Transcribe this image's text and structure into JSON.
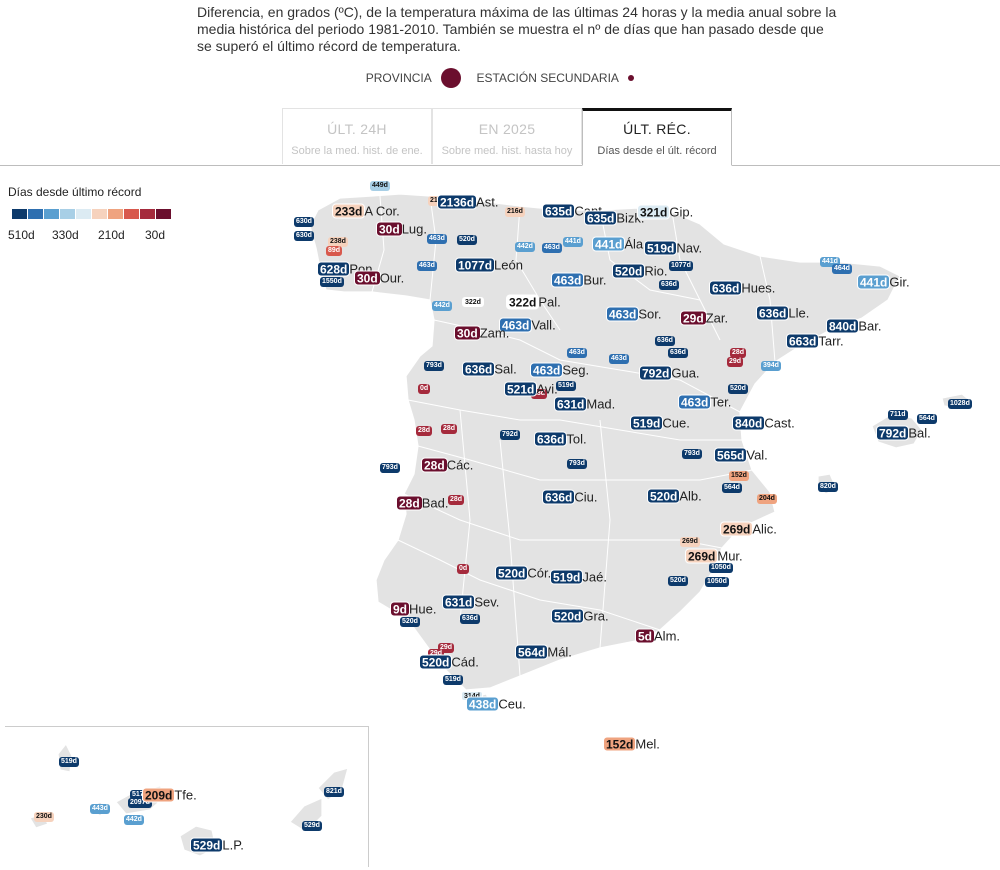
{
  "subtitle": "Diferencia, en grados (ºC), de la temperatura máxima de las últimas 24 horas y la media anual sobre la media histórica del periodo 1981-2010. También se muestra el nº de días que han pasado desde que se superó el último récord de temperatura.",
  "legend": {
    "provincia": "PROVINCIA",
    "estacion": "ESTACIÓN SECUNDARIA"
  },
  "tabs": [
    {
      "title": "ÚLT. 24H",
      "sub": "Sobre la med. hist. de ene.",
      "active": false
    },
    {
      "title": "EN 2025",
      "sub": "Sobre med. hist. hasta hoy",
      "active": false
    },
    {
      "title": "ÚLT. RÉC.",
      "sub": "Días desde el últ. récord",
      "active": true
    }
  ],
  "scale": {
    "title": "Días desde último récord",
    "colors": [
      "#0d3a6b",
      "#2e6fb0",
      "#5a9fd0",
      "#a8cfe6",
      "#dcebf3",
      "#f6d2bd",
      "#efa37f",
      "#d8594d",
      "#a52a3c",
      "#6b0f2e"
    ],
    "labels": [
      "510d",
      "330d",
      "210d",
      "30d"
    ]
  },
  "colors": {
    "d0": "#0d3a6b",
    "d1": "#2e6fb0",
    "d2": "#5a9fd0",
    "d3": "#a8cfe6",
    "d4": "#dcebf3",
    "w4": "#f6d2bd",
    "w3": "#efa37f",
    "w2": "#d8594d",
    "w1": "#a52a3c",
    "w0": "#6b0f2e",
    "land": "#e3e3e3"
  },
  "provinces": [
    {
      "days": "233d",
      "name": "A Cor.",
      "c": "w4"
    },
    {
      "days": "2136d",
      "name": "Ast.",
      "c": "d0"
    },
    {
      "days": "635d",
      "name": "Cant.",
      "c": "d0"
    },
    {
      "days": "635d",
      "name": "Bizk.",
      "c": "d0"
    },
    {
      "days": "321d",
      "name": "Gip.",
      "c": "d4"
    },
    {
      "days": "30d",
      "name": "Lug.",
      "c": "w0"
    },
    {
      "days": "441d",
      "name": "Ála.",
      "c": "d2"
    },
    {
      "days": "519d",
      "name": "Nav.",
      "c": "d0"
    },
    {
      "days": "628d",
      "name": "Pon.",
      "c": "d0"
    },
    {
      "days": "1077d",
      "name": "León",
      "c": "d0"
    },
    {
      "days": "520d",
      "name": "Rio.",
      "c": "d0"
    },
    {
      "days": "30d",
      "name": "Our.",
      "c": "w0"
    },
    {
      "days": "463d",
      "name": "Bur.",
      "c": "d1"
    },
    {
      "days": "636d",
      "name": "Hues.",
      "c": "d0"
    },
    {
      "days": "441d",
      "name": "Gir.",
      "c": "d2"
    },
    {
      "days": "322d",
      "name": "Pal.",
      "c": "none"
    },
    {
      "days": "463d",
      "name": "Sor.",
      "c": "d1"
    },
    {
      "days": "29d",
      "name": "Zar.",
      "c": "w0"
    },
    {
      "days": "636d",
      "name": "Lle.",
      "c": "d0"
    },
    {
      "days": "840d",
      "name": "Bar.",
      "c": "d0"
    },
    {
      "days": "463d",
      "name": "Vall.",
      "c": "d1"
    },
    {
      "days": "30d",
      "name": "Zam.",
      "c": "w0"
    },
    {
      "days": "663d",
      "name": "Tarr.",
      "c": "d0"
    },
    {
      "days": "636d",
      "name": "Sal.",
      "c": "d0"
    },
    {
      "days": "463d",
      "name": "Seg.",
      "c": "d1"
    },
    {
      "days": "792d",
      "name": "Gua.",
      "c": "d0"
    },
    {
      "days": "521d",
      "name": "Avi.",
      "c": "d0"
    },
    {
      "days": "631d",
      "name": "Mad.",
      "c": "d0"
    },
    {
      "days": "463d",
      "name": "Ter.",
      "c": "d1"
    },
    {
      "days": "519d",
      "name": "Cue.",
      "c": "d0"
    },
    {
      "days": "840d",
      "name": "Cast.",
      "c": "d0"
    },
    {
      "days": "792d",
      "name": "Bal.",
      "c": "d0"
    },
    {
      "days": "636d",
      "name": "Tol.",
      "c": "d0"
    },
    {
      "days": "28d",
      "name": "Các.",
      "c": "w0"
    },
    {
      "days": "565d",
      "name": "Val.",
      "c": "d0"
    },
    {
      "days": "28d",
      "name": "Bad.",
      "c": "w0"
    },
    {
      "days": "636d",
      "name": "Ciu.",
      "c": "d0"
    },
    {
      "days": "520d",
      "name": "Alb.",
      "c": "d0"
    },
    {
      "days": "269d",
      "name": "Alic.",
      "c": "w4"
    },
    {
      "days": "269d",
      "name": "Mur.",
      "c": "w4"
    },
    {
      "days": "520d",
      "name": "Cór.",
      "c": "d0"
    },
    {
      "days": "519d",
      "name": "Jaé.",
      "c": "d0"
    },
    {
      "days": "9d",
      "name": "Hue.",
      "c": "w0"
    },
    {
      "days": "631d",
      "name": "Sev.",
      "c": "d0"
    },
    {
      "days": "520d",
      "name": "Gra.",
      "c": "d0"
    },
    {
      "days": "5d",
      "name": "Alm.",
      "c": "w0"
    },
    {
      "days": "564d",
      "name": "Mál.",
      "c": "d0"
    },
    {
      "days": "520d",
      "name": "Cád.",
      "c": "d0"
    },
    {
      "days": "438d",
      "name": "Ceu.",
      "c": "d2"
    },
    {
      "days": "152d",
      "name": "Mel.",
      "c": "w3"
    },
    {
      "days": "209d",
      "name": "Tfe.",
      "c": "w3"
    },
    {
      "days": "529d",
      "name": "L.P.",
      "c": "d0"
    }
  ],
  "stations": [
    {
      "v": "449d",
      "c": "d3"
    },
    {
      "v": "216",
      "c": "w4"
    },
    {
      "v": "216d",
      "c": "w4"
    },
    {
      "v": "630d",
      "c": "d0"
    },
    {
      "v": "630d",
      "c": "d0"
    },
    {
      "v": "238d",
      "c": "w4"
    },
    {
      "v": "89d",
      "c": "w2"
    },
    {
      "v": "463d",
      "c": "d1"
    },
    {
      "v": "520d",
      "c": "d0"
    },
    {
      "v": "442d",
      "c": "d2"
    },
    {
      "v": "441d",
      "c": "d2"
    },
    {
      "v": "463d",
      "c": "d1"
    },
    {
      "v": "1077d",
      "c": "d0"
    },
    {
      "v": "1550d",
      "c": "d0"
    },
    {
      "v": "463d",
      "c": "d1"
    },
    {
      "v": "636d",
      "c": "d0"
    },
    {
      "v": "442d",
      "c": "d2"
    },
    {
      "v": "322d",
      "c": "none"
    },
    {
      "v": "441d",
      "c": "d2"
    },
    {
      "v": "464d",
      "c": "d1"
    },
    {
      "v": "636d",
      "c": "d0"
    },
    {
      "v": "636d",
      "c": "d0"
    },
    {
      "v": "28d",
      "c": "w1"
    },
    {
      "v": "29d",
      "c": "w1"
    },
    {
      "v": "793d",
      "c": "d0"
    },
    {
      "v": "463d",
      "c": "d1"
    },
    {
      "v": "463d",
      "c": "d1"
    },
    {
      "v": "394d",
      "c": "d2"
    },
    {
      "v": "0d",
      "c": "w1"
    },
    {
      "v": "520d",
      "c": "d0"
    },
    {
      "v": "519d",
      "c": "d0"
    },
    {
      "v": "28d",
      "c": "w1"
    },
    {
      "v": "28d",
      "c": "w1"
    },
    {
      "v": "28d",
      "c": "w1"
    },
    {
      "v": "792d",
      "c": "d0"
    },
    {
      "v": "711d",
      "c": "d0"
    },
    {
      "v": "564d",
      "c": "d0"
    },
    {
      "v": "1028d",
      "c": "d0"
    },
    {
      "v": "793d",
      "c": "d0"
    },
    {
      "v": "793d",
      "c": "d0"
    },
    {
      "v": "793d",
      "c": "d0"
    },
    {
      "v": "152d",
      "c": "w3"
    },
    {
      "v": "564d",
      "c": "d0"
    },
    {
      "v": "204d",
      "c": "w3"
    },
    {
      "v": "820d",
      "c": "d0"
    },
    {
      "v": "28d",
      "c": "w1"
    },
    {
      "v": "269d",
      "c": "w4"
    },
    {
      "v": "1050d",
      "c": "d0"
    },
    {
      "v": "1050d",
      "c": "d0"
    },
    {
      "v": "520d",
      "c": "d0"
    },
    {
      "v": "0d",
      "c": "w1"
    },
    {
      "v": "520d",
      "c": "d0"
    },
    {
      "v": "636d",
      "c": "d0"
    },
    {
      "v": "29d",
      "c": "w1"
    },
    {
      "v": "29d",
      "c": "w1"
    },
    {
      "v": "519d",
      "c": "d0"
    },
    {
      "v": "314d",
      "c": "d4"
    },
    {
      "v": "519d",
      "c": "d0"
    },
    {
      "v": "517",
      "c": "d0"
    },
    {
      "v": "2097d",
      "c": "d0"
    },
    {
      "v": "443d",
      "c": "d2"
    },
    {
      "v": "442d",
      "c": "d2"
    },
    {
      "v": "230d",
      "c": "w4"
    },
    {
      "v": "821d",
      "c": "d0"
    },
    {
      "v": "529d",
      "c": "d0"
    }
  ]
}
